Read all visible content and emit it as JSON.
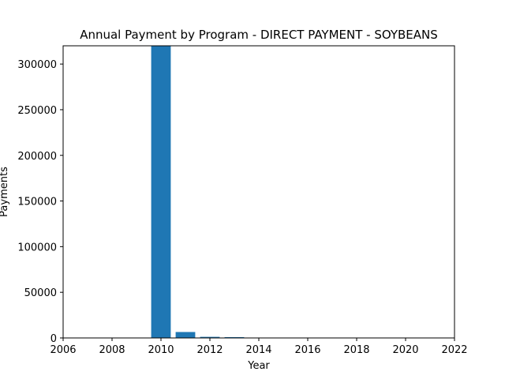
{
  "chart_data": {
    "type": "bar",
    "title": "Annual Payment by Program - DIRECT PAYMENT - SOYBEANS",
    "xlabel": "Year",
    "ylabel": "Payments",
    "xlim": [
      2006,
      2022
    ],
    "ylim": [
      0,
      320000
    ],
    "x_ticks": [
      2006,
      2008,
      2010,
      2012,
      2014,
      2016,
      2018,
      2020,
      2022
    ],
    "y_ticks": [
      0,
      50000,
      100000,
      150000,
      200000,
      250000,
      300000
    ],
    "x": [
      2010,
      2011,
      2012,
      2013
    ],
    "values": [
      320000,
      6500,
      1200,
      900
    ],
    "bar_color": "#1f77b4",
    "grid": false,
    "legend": "none"
  }
}
